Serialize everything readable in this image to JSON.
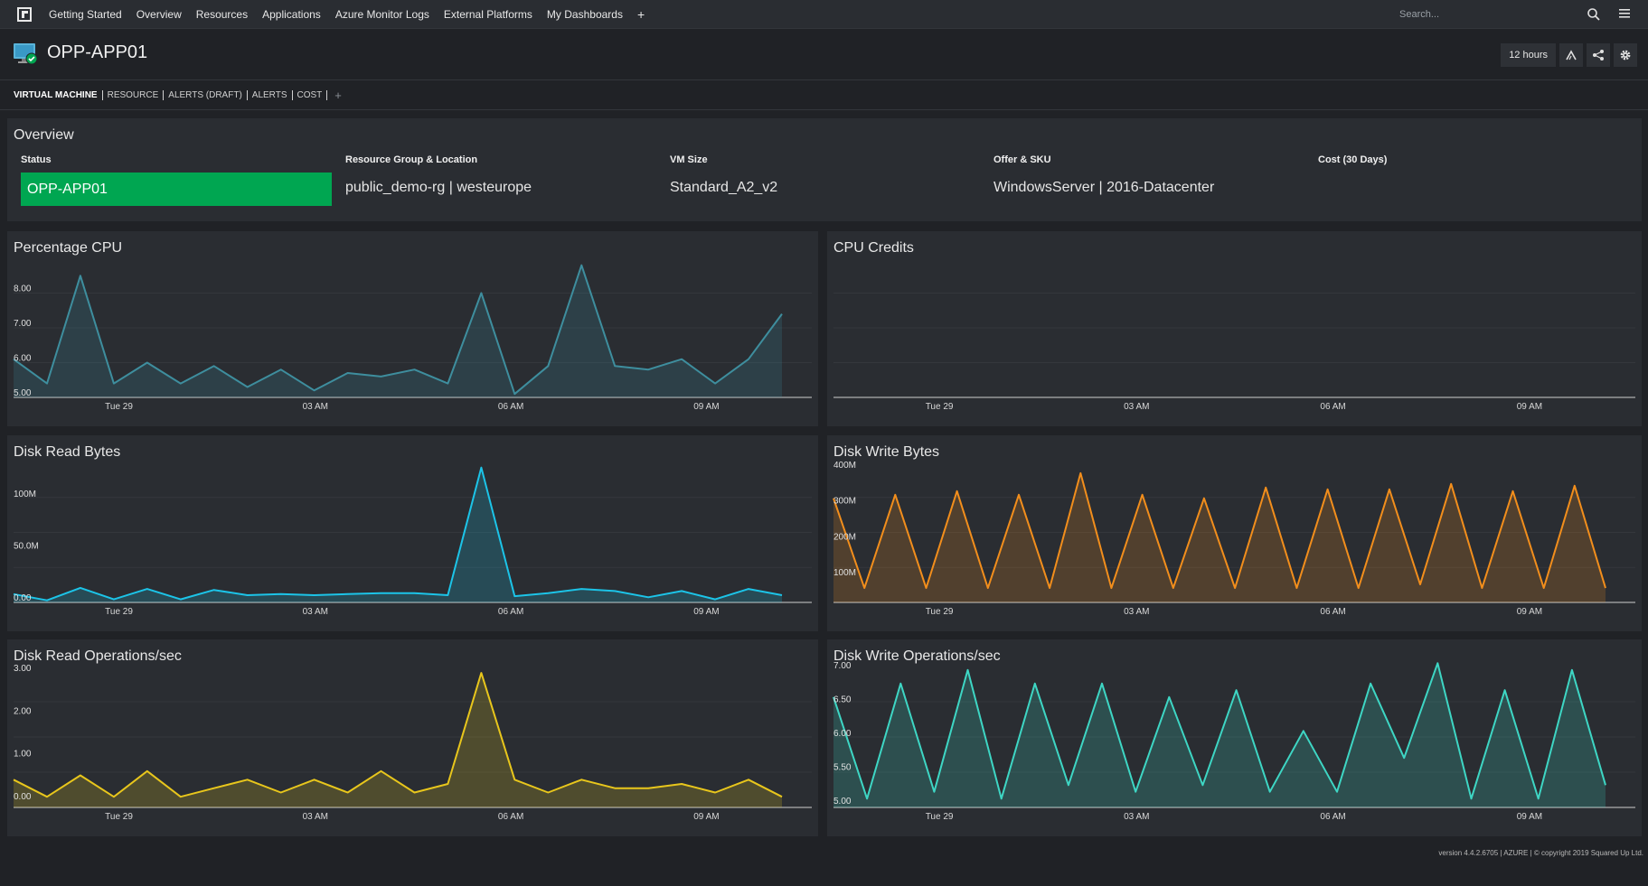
{
  "nav": {
    "items": [
      "Getting Started",
      "Overview",
      "Resources",
      "Applications",
      "Azure Monitor Logs",
      "External Platforms",
      "My Dashboards"
    ],
    "plus": "+",
    "search_placeholder": "Search..."
  },
  "header": {
    "title": "OPP-APP01",
    "timeframe": "12 hours"
  },
  "tabs": [
    "VIRTUAL MACHINE",
    "RESOURCE",
    "ALERTS (DRAFT)",
    "ALERTS",
    "COST"
  ],
  "tab_add": "+",
  "overview": {
    "title": "Overview",
    "status_label": "Status",
    "status_value": "OPP-APP01",
    "rg_label": "Resource Group & Location",
    "rg_value": "public_demo-rg | westeurope",
    "size_label": "VM Size",
    "size_value": "Standard_A2_v2",
    "offer_label": "Offer & SKU",
    "offer_value": "WindowsServer | 2016-Datacenter",
    "cost_label": "Cost (30 Days)",
    "cost_value": ""
  },
  "colors": {
    "status_green": "#00a651",
    "cpu": "#3e8e9e",
    "disk_read": "#1cc4e8",
    "disk_write": "#f28e1c",
    "read_ops": "#e8c61c",
    "write_ops": "#3ed6c4"
  },
  "x_ticks": [
    "Tue 29",
    "03 AM",
    "06 AM",
    "09 AM"
  ],
  "chart_data": [
    {
      "id": "cpu",
      "type": "area",
      "title": "Percentage CPU",
      "yticks": [
        "5.00",
        "6.00",
        "7.00",
        "8.00"
      ],
      "ylim": [
        5,
        9
      ],
      "values": [
        6.1,
        5.4,
        8.5,
        5.4,
        6.0,
        5.4,
        5.9,
        5.3,
        5.8,
        5.2,
        5.7,
        5.6,
        5.8,
        5.4,
        8.0,
        5.1,
        5.9,
        8.8,
        5.9,
        5.8,
        6.1,
        5.4,
        6.1,
        7.4
      ]
    },
    {
      "id": "credits",
      "type": "line",
      "title": "CPU Credits",
      "yticks": [],
      "values": []
    },
    {
      "id": "disk_read",
      "type": "area",
      "title": "Disk Read Bytes",
      "yticks": [
        "0.00",
        "50.0M",
        "100M"
      ],
      "ytick_values": [
        0,
        50,
        100
      ],
      "ylim": [
        0,
        135
      ],
      "values": [
        8,
        2,
        14,
        3,
        13,
        3,
        12,
        7,
        8,
        7,
        8,
        9,
        9,
        7,
        130,
        6,
        9,
        13,
        11,
        5,
        11,
        3,
        13,
        7
      ]
    },
    {
      "id": "disk_write",
      "type": "area",
      "title": "Disk Write Bytes",
      "yticks": [
        "100M",
        "200M",
        "300M",
        "400M"
      ],
      "ytick_values": [
        100,
        200,
        300,
        400
      ],
      "ylim": [
        30,
        420
      ],
      "values": [
        320,
        70,
        330,
        70,
        340,
        70,
        330,
        70,
        390,
        70,
        330,
        70,
        320,
        70,
        350,
        70,
        345,
        70,
        345,
        80,
        360,
        70,
        340,
        70,
        355,
        70
      ]
    },
    {
      "id": "read_ops",
      "type": "area",
      "title": "Disk Read Operations/sec",
      "yticks": [
        "0.00",
        "1.00",
        "2.00",
        "3.00"
      ],
      "ytick_values": [
        0,
        1,
        2,
        3
      ],
      "ylim": [
        -0.15,
        3.15
      ],
      "values": [
        0.5,
        0.1,
        0.6,
        0.1,
        0.7,
        0.1,
        0.3,
        0.5,
        0.2,
        0.5,
        0.2,
        0.7,
        0.2,
        0.4,
        3.0,
        0.5,
        0.2,
        0.5,
        0.3,
        0.3,
        0.4,
        0.2,
        0.5,
        0.1
      ]
    },
    {
      "id": "write_ops",
      "type": "area",
      "title": "Disk Write Operations/sec",
      "yticks": [
        "5.00",
        "5.50",
        "6.00",
        "6.50",
        "7.00"
      ],
      "ytick_values": [
        5,
        5.5,
        6,
        6.5,
        7
      ],
      "ylim": [
        4.97,
        7.05
      ],
      "values": [
        6.6,
        5.1,
        6.8,
        5.2,
        7.0,
        5.1,
        6.8,
        5.3,
        6.8,
        5.2,
        6.6,
        5.3,
        6.7,
        5.2,
        6.1,
        5.2,
        6.8,
        5.7,
        7.1,
        5.1,
        6.7,
        5.1,
        7.0,
        5.3
      ]
    }
  ],
  "footer": "version 4.4.2.6705 | AZURE | © copyright 2019 Squared Up Ltd."
}
